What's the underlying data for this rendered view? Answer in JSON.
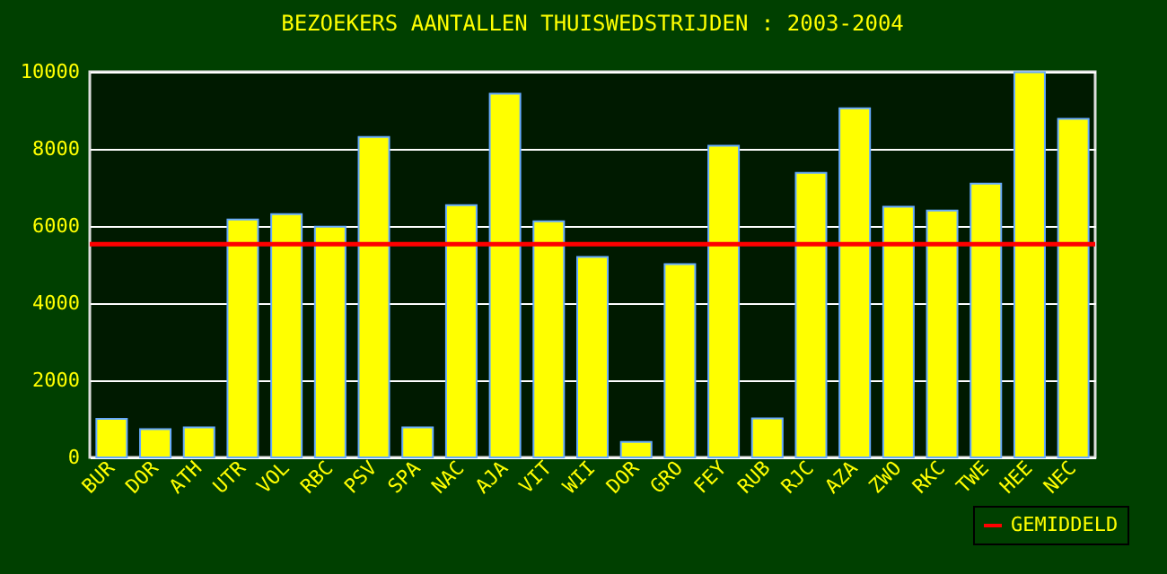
{
  "chart_data": {
    "type": "bar",
    "title": "BEZOEKERS AANTALLEN THUISWEDSTRIJDEN : 2003-2004",
    "categories": [
      "BUR",
      "DOR",
      "ATH",
      "UTR",
      "VOL",
      "RBC",
      "PSV",
      "SPA",
      "NAC",
      "AJA",
      "VIT",
      "WII",
      "DOR",
      "GRO",
      "FEY",
      "RUB",
      "RJC",
      "AZA",
      "ZWO",
      "RKC",
      "TWE",
      "HEE",
      "NEC"
    ],
    "values": [
      1000,
      730,
      780,
      6170,
      6310,
      5980,
      8310,
      780,
      6540,
      9430,
      6120,
      5200,
      400,
      5010,
      8080,
      1010,
      7380,
      9050,
      6500,
      6400,
      7100,
      9990,
      8780
    ],
    "color": "#ffff00",
    "ylim": [
      0,
      10000
    ],
    "yticks": [
      0,
      2000,
      4000,
      6000,
      8000,
      10000
    ],
    "grid": "y",
    "ref_lines": [
      {
        "axis": "y",
        "value": 5530,
        "label": "GEMIDDELD",
        "color": "#ff0000"
      }
    ],
    "legend": "bottom right"
  }
}
